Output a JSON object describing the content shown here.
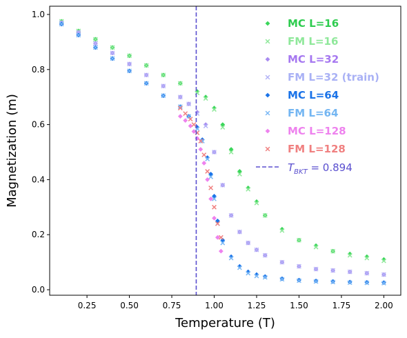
{
  "chart_data": {
    "type": "scatter",
    "xlabel": "Temperature (T)",
    "ylabel": "Magnetization (m)",
    "xlim": [
      0.03,
      2.1
    ],
    "ylim": [
      -0.02,
      1.03
    ],
    "xticks": [
      "0.25",
      "0.50",
      "0.75",
      "1.00",
      "1.25",
      "1.50",
      "1.75",
      "2.00"
    ],
    "yticks": [
      "0.0",
      "0.2",
      "0.4",
      "0.6",
      "0.8",
      "1.0"
    ],
    "vline": {
      "x": 0.894,
      "color": "#5a4fcf",
      "label_main": "T",
      "label_sub": "BKT",
      "label_value": " = 0.894"
    },
    "legend_position": "upper-right",
    "series": [
      {
        "name": "MC L=16",
        "marker": "diamond",
        "color": "#3ad65a",
        "legend_color": "#2ecc4f",
        "x": [
          0.1,
          0.2,
          0.3,
          0.4,
          0.5,
          0.6,
          0.7,
          0.8,
          0.9,
          0.95,
          1.0,
          1.05,
          1.1,
          1.15,
          1.2,
          1.25,
          1.3,
          1.4,
          1.5,
          1.6,
          1.7,
          1.8,
          1.9,
          2.0
        ],
        "y": [
          0.975,
          0.94,
          0.91,
          0.88,
          0.85,
          0.815,
          0.78,
          0.75,
          0.72,
          0.7,
          0.66,
          0.6,
          0.51,
          0.43,
          0.37,
          0.32,
          0.27,
          0.22,
          0.18,
          0.16,
          0.14,
          0.13,
          0.12,
          0.11
        ]
      },
      {
        "name": "FM L=16",
        "marker": "x",
        "color": "#8fe89a",
        "legend_color": "#8fe89a",
        "x": [
          0.1,
          0.2,
          0.3,
          0.4,
          0.5,
          0.6,
          0.7,
          0.8,
          0.9,
          0.95,
          1.0,
          1.05,
          1.1,
          1.15,
          1.2,
          1.25,
          1.3,
          1.4,
          1.5,
          1.6,
          1.7,
          1.8,
          1.9,
          2.0
        ],
        "y": [
          0.975,
          0.94,
          0.91,
          0.88,
          0.85,
          0.815,
          0.78,
          0.75,
          0.715,
          0.695,
          0.655,
          0.59,
          0.5,
          0.42,
          0.365,
          0.315,
          0.27,
          0.215,
          0.18,
          0.155,
          0.14,
          0.125,
          0.115,
          0.105
        ]
      },
      {
        "name": "MC L=32",
        "marker": "diamond",
        "color": "#a98bf0",
        "legend_color": "#a678f0",
        "x": [
          0.1,
          0.2,
          0.3,
          0.4,
          0.5,
          0.6,
          0.7,
          0.8,
          0.85,
          0.9,
          0.95,
          1.0,
          1.05,
          1.1,
          1.15,
          1.2,
          1.25,
          1.3,
          1.4,
          1.5,
          1.6,
          1.7,
          1.8,
          1.9,
          2.0
        ],
        "y": [
          0.97,
          0.935,
          0.895,
          0.86,
          0.82,
          0.78,
          0.74,
          0.7,
          0.675,
          0.645,
          0.6,
          0.5,
          0.38,
          0.27,
          0.21,
          0.17,
          0.145,
          0.125,
          0.1,
          0.085,
          0.075,
          0.07,
          0.065,
          0.06,
          0.055
        ]
      },
      {
        "name": "FM L=32 (train)",
        "marker": "x",
        "color": "#b3b3f7",
        "legend_color": "#a9b1f5",
        "x": [
          0.1,
          0.2,
          0.3,
          0.4,
          0.5,
          0.6,
          0.7,
          0.8,
          0.85,
          0.9,
          0.95,
          1.0,
          1.05,
          1.1,
          1.15,
          1.2,
          1.25,
          1.3,
          1.4,
          1.5,
          1.6,
          1.7,
          1.8,
          1.9,
          2.0
        ],
        "y": [
          0.97,
          0.935,
          0.895,
          0.86,
          0.82,
          0.78,
          0.74,
          0.7,
          0.675,
          0.64,
          0.595,
          0.5,
          0.38,
          0.27,
          0.21,
          0.17,
          0.145,
          0.125,
          0.1,
          0.085,
          0.075,
          0.07,
          0.065,
          0.06,
          0.055
        ]
      },
      {
        "name": "MC L=64",
        "marker": "diamond",
        "color": "#1a73e8",
        "legend_color": "#1a73e8",
        "x": [
          0.1,
          0.2,
          0.3,
          0.4,
          0.5,
          0.6,
          0.7,
          0.8,
          0.85,
          0.9,
          0.93,
          0.96,
          0.98,
          1.0,
          1.02,
          1.05,
          1.1,
          1.15,
          1.2,
          1.25,
          1.3,
          1.4,
          1.5,
          1.6,
          1.7,
          1.8,
          1.9,
          2.0
        ],
        "y": [
          0.965,
          0.925,
          0.88,
          0.84,
          0.795,
          0.75,
          0.705,
          0.665,
          0.63,
          0.59,
          0.545,
          0.48,
          0.42,
          0.34,
          0.25,
          0.18,
          0.12,
          0.085,
          0.065,
          0.055,
          0.048,
          0.04,
          0.035,
          0.032,
          0.03,
          0.028,
          0.027,
          0.026
        ]
      },
      {
        "name": "FM L=64",
        "marker": "x",
        "color": "#7ab8f5",
        "legend_color": "#74b6f2",
        "x": [
          0.1,
          0.2,
          0.3,
          0.4,
          0.5,
          0.6,
          0.7,
          0.8,
          0.85,
          0.9,
          0.93,
          0.96,
          0.98,
          1.0,
          1.02,
          1.05,
          1.1,
          1.15,
          1.2,
          1.25,
          1.3,
          1.4,
          1.5,
          1.6,
          1.7,
          1.8,
          1.9,
          2.0
        ],
        "y": [
          0.965,
          0.925,
          0.88,
          0.84,
          0.795,
          0.75,
          0.705,
          0.665,
          0.63,
          0.585,
          0.54,
          0.475,
          0.41,
          0.33,
          0.24,
          0.17,
          0.115,
          0.08,
          0.06,
          0.05,
          0.045,
          0.038,
          0.033,
          0.03,
          0.028,
          0.026,
          0.025,
          0.024
        ]
      },
      {
        "name": "MC L=128",
        "marker": "diamond",
        "color": "#ee82ee",
        "legend_color": "#ee82ee",
        "x": [
          0.8,
          0.83,
          0.86,
          0.88,
          0.9,
          0.92,
          0.94,
          0.96,
          0.98,
          1.0,
          1.02,
          1.04
        ],
        "y": [
          0.63,
          0.615,
          0.595,
          0.575,
          0.55,
          0.51,
          0.46,
          0.4,
          0.33,
          0.26,
          0.19,
          0.14
        ]
      },
      {
        "name": "FM L=128",
        "marker": "x",
        "color": "#f08080",
        "legend_color": "#f08080",
        "x": [
          0.8,
          0.83,
          0.86,
          0.88,
          0.9,
          0.92,
          0.94,
          0.96,
          0.98,
          1.0,
          1.02,
          1.04
        ],
        "y": [
          0.66,
          0.64,
          0.62,
          0.6,
          0.57,
          0.54,
          0.49,
          0.43,
          0.37,
          0.3,
          0.24,
          0.19
        ]
      }
    ]
  }
}
